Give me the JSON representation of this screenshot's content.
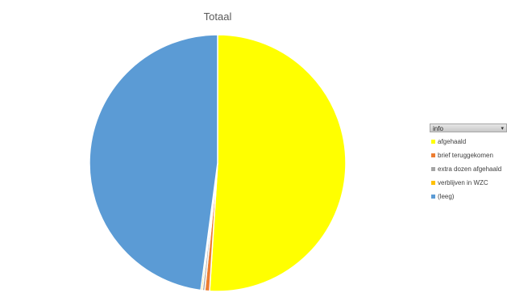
{
  "chart_data": {
    "type": "pie",
    "title": "Totaal",
    "legend_placement": "right",
    "legend_header": "info",
    "slices": [
      {
        "label": "afgehaald",
        "value": 51.0,
        "color": "#ffff00"
      },
      {
        "label": "brief teruggekomen",
        "value": 0.6,
        "color": "#ed7d31"
      },
      {
        "label": "extra dozen afgehaald",
        "value": 0.3,
        "color": "#a5a5a5"
      },
      {
        "label": "verblijven in WZC",
        "value": 0.2,
        "color": "#ffc000"
      },
      {
        "label": "(leeg)",
        "value": 47.9,
        "color": "#5b9bd5"
      }
    ]
  },
  "icons": {
    "dropdown": "▾"
  }
}
